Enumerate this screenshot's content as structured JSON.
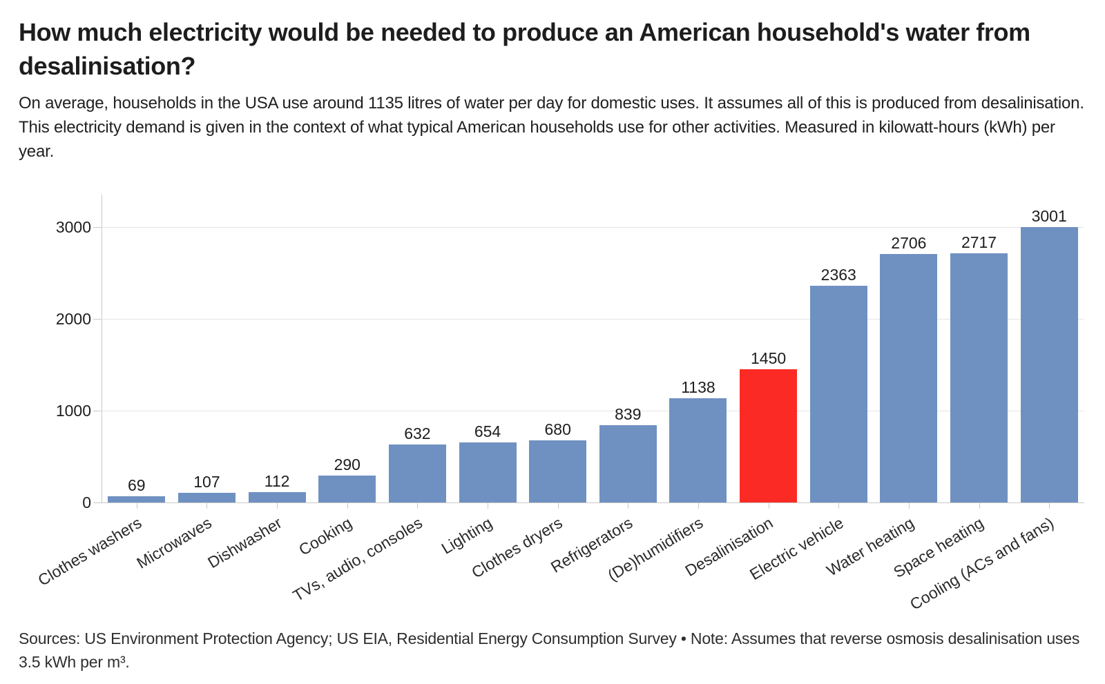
{
  "chart_data": {
    "type": "bar",
    "title": "How much electricity would be needed to produce an American household's water from desalinisation?",
    "subtitle": "On average, households in the USA use around 1135 litres of water per day for domestic uses. It assumes all of this is produced from desalinisation. This electricity demand is given in the context of what typical American households use for other activities. Measured in kilowatt-hours (kWh) per year.",
    "note": "Sources: US Environment Protection Agency; US EIA, Residential Energy Consumption Survey • Note: Assumes that reverse osmosis desalinisation uses 3.5 kWh per m³.",
    "categories": [
      "Clothes washers",
      "Microwaves",
      "Dishwasher",
      "Cooking",
      "TVs, audio, consoles",
      "Lighting",
      "Clothes dryers",
      "Refrigerators",
      "(De)humidifiers",
      "Desalinisation",
      "Electric vehicle",
      "Water heating",
      "Space heating",
      "Cooling (ACs and fans)"
    ],
    "values": [
      69,
      107,
      112,
      290,
      632,
      654,
      680,
      839,
      1138,
      1450,
      2363,
      2706,
      2717,
      3001
    ],
    "highlight_category": "Desalinisation",
    "highlight_index": 9,
    "value_labels": true,
    "xlabel": "",
    "ylabel": "",
    "yticks": [
      0,
      1000,
      2000,
      3000
    ],
    "ylim": [
      0,
      3200
    ],
    "grid": true,
    "legend_position": "none",
    "colors": {
      "bar": "#6f91c1",
      "highlight": "#fc2a25",
      "grid": "#e5e5e5",
      "axis": "#c9c9c9",
      "text": "#1d1d1d",
      "label": "#2a2a2a"
    }
  }
}
